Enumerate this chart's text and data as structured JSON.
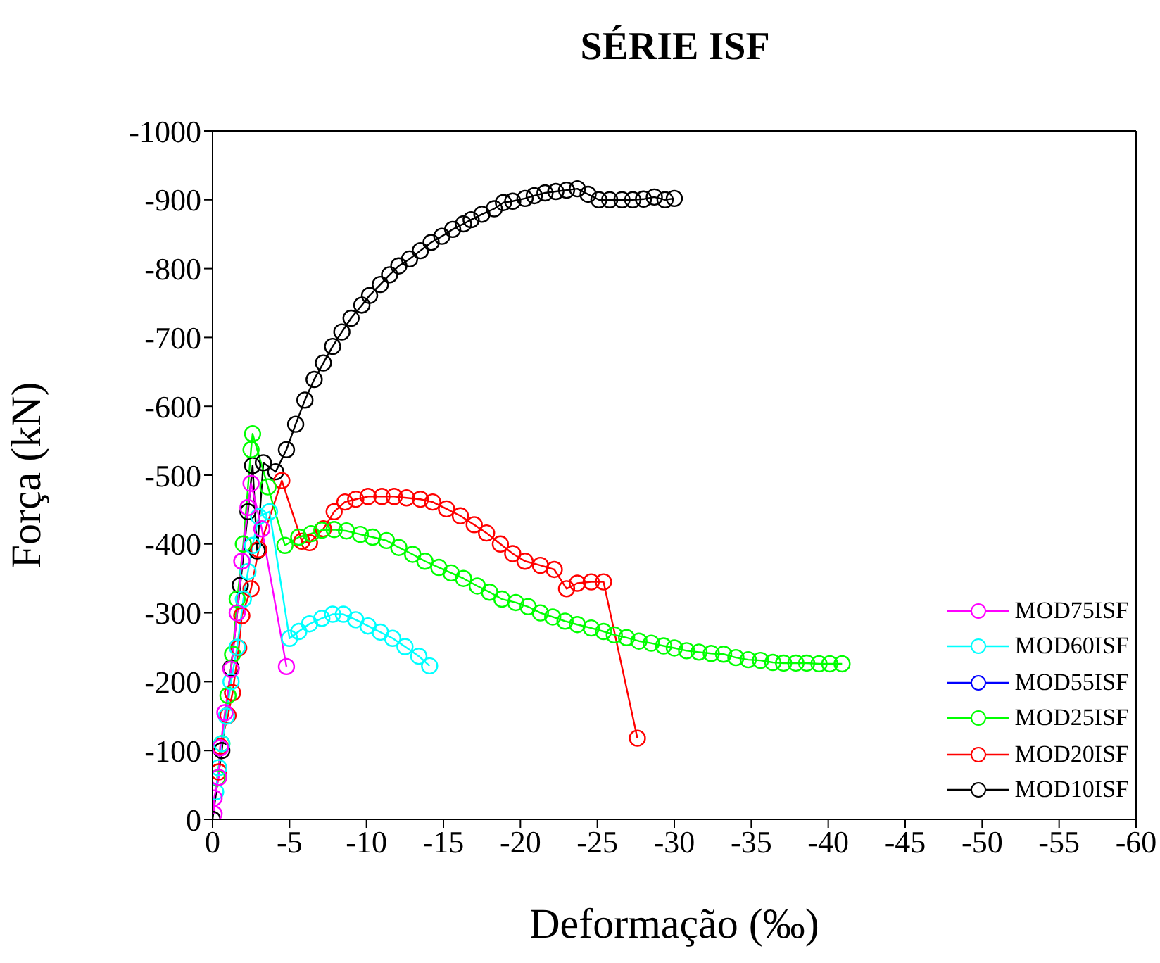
{
  "chart_data": {
    "type": "line",
    "title": "SÉRIE ISF",
    "xlabel": "Deformação (‰)",
    "ylabel": "Força (kN)",
    "xlim": [
      0,
      -60
    ],
    "xticks": [
      0,
      -5,
      -10,
      -15,
      -20,
      -25,
      -30,
      -35,
      -40,
      -45,
      -50,
      -55,
      -60
    ],
    "ylim": [
      0,
      -1000
    ],
    "yticks": [
      0,
      -100,
      -200,
      -300,
      -400,
      -500,
      -600,
      -700,
      -800,
      -900,
      -1000
    ],
    "legend": "bottom right",
    "marker": "circle",
    "line_style": "solid",
    "series": [
      {
        "name": "MOD75ISF",
        "color": "#ff00ff",
        "x": [
          -0.1,
          -0.1,
          -0.4,
          -0.5,
          -0.8,
          -1.2,
          -1.6,
          -1.9,
          -2.3,
          -2.5,
          -3.2,
          -4.8
        ],
        "values": [
          -8,
          -31,
          -61,
          -104,
          -155,
          -218,
          -300,
          -375,
          -453,
          -488,
          -422,
          -222
        ]
      },
      {
        "name": "MOD60ISF",
        "color": "#00ffff",
        "x": [
          -0.2,
          -0.4,
          -0.6,
          -0.9,
          -1.2,
          -1.6,
          -2.0,
          -2.3,
          -2.6,
          -3.0,
          -3.7,
          -5.0,
          -5.6,
          -6.3,
          -7.1,
          -7.8,
          -8.5,
          -9.3,
          -10.1,
          -10.9,
          -11.7,
          -12.5,
          -13.4,
          -14.1
        ],
        "values": [
          -40,
          -75,
          -110,
          -150,
          -200,
          -250,
          -320,
          -360,
          -398,
          -440,
          -447,
          -263,
          -273,
          -284,
          -292,
          -298,
          -298,
          -290,
          -281,
          -272,
          -263,
          -251,
          -237,
          -223
        ]
      },
      {
        "name": "MOD55ISF",
        "color": "#0000ff"
      },
      {
        "name": "MOD25ISF",
        "color": "#00ff00",
        "x": [
          -0.3,
          -0.6,
          -1.0,
          -1.3,
          -1.6,
          -2.0,
          -2.5,
          -2.6,
          -3.6,
          -4.7,
          -5.6,
          -6.4,
          -7.1,
          -7.9,
          -8.7,
          -9.6,
          -10.4,
          -11.3,
          -12.1,
          -13.0,
          -13.8,
          -14.7,
          -15.5,
          -16.3,
          -17.2,
          -18.0,
          -18.8,
          -19.7,
          -20.5,
          -21.3,
          -22.1,
          -22.9,
          -23.7,
          -24.6,
          -25.4,
          -26.1,
          -26.9,
          -27.7,
          -28.5,
          -29.3,
          -30.0,
          -30.8,
          -31.6,
          -32.4,
          -33.2,
          -34.0,
          -34.8,
          -35.6,
          -36.4,
          -37.1,
          -37.9,
          -38.6,
          -39.4,
          -40.1,
          -40.9
        ],
        "values": [
          -60,
          -110,
          -180,
          -240,
          -320,
          -400,
          -537,
          -560,
          -483,
          -398,
          -410,
          -415,
          -420,
          -421,
          -419,
          -414,
          -410,
          -405,
          -395,
          -385,
          -375,
          -366,
          -358,
          -350,
          -339,
          -330,
          -320,
          -315,
          -309,
          -300,
          -294,
          -288,
          -283,
          -278,
          -273,
          -268,
          -264,
          -259,
          -256,
          -252,
          -249,
          -245,
          -243,
          -241,
          -240,
          -235,
          -232,
          -231,
          -228,
          -227,
          -227,
          -227,
          -226,
          -226,
          -226
        ]
      },
      {
        "name": "MOD20ISF",
        "color": "#ff0000",
        "x": [
          -0.4,
          -0.5,
          -1.0,
          -1.3,
          -1.7,
          -1.9,
          -2.5,
          -3.0,
          -4.5,
          -5.8,
          -6.3,
          -7.2,
          -7.9,
          -8.6,
          -9.3,
          -10.1,
          -11.0,
          -11.8,
          -12.6,
          -13.5,
          -14.3,
          -15.2,
          -16.1,
          -17.0,
          -17.8,
          -18.7,
          -19.5,
          -20.3,
          -21.3,
          -22.2,
          -23.0,
          -23.7,
          -24.6,
          -25.4,
          -27.6
        ],
        "values": [
          -69,
          -106,
          -151,
          -184,
          -249,
          -296,
          -335,
          -392,
          -492,
          -404,
          -402,
          -422,
          -447,
          -461,
          -465,
          -469,
          -469,
          -469,
          -467,
          -465,
          -461,
          -451,
          -441,
          -428,
          -416,
          -400,
          -386,
          -375,
          -369,
          -363,
          -335,
          -343,
          -345,
          -345,
          -118
        ]
      },
      {
        "name": "MOD10ISF",
        "color": "#000000",
        "x": [
          0,
          -0.6,
          -1.2,
          -1.8,
          -2.3,
          -2.6,
          -2.9,
          -3.3,
          -4.1,
          -4.8,
          -5.4,
          -6.0,
          -6.6,
          -7.2,
          -7.8,
          -8.4,
          -9.0,
          -9.7,
          -10.2,
          -10.9,
          -11.5,
          -12.1,
          -12.8,
          -13.5,
          -14.2,
          -14.9,
          -15.6,
          -16.3,
          -16.8,
          -17.5,
          -18.3,
          -18.9,
          -19.5,
          -20.3,
          -20.9,
          -21.6,
          -22.3,
          -23.0,
          -23.7,
          -24.4,
          -25.1,
          -25.8,
          -26.6,
          -27.3,
          -28.0,
          -28.7,
          -29.4,
          -30.0
        ],
        "values": [
          0,
          -100,
          -220,
          -340,
          -447,
          -514,
          -390,
          -518,
          -505,
          -537,
          -574,
          -609,
          -639,
          -663,
          -687,
          -708,
          -728,
          -747,
          -761,
          -777,
          -791,
          -804,
          -814,
          -826,
          -838,
          -847,
          -857,
          -865,
          -871,
          -879,
          -887,
          -896,
          -898,
          -902,
          -906,
          -910,
          -912,
          -914,
          -916,
          -908,
          -900,
          -900,
          -900,
          -900,
          -901,
          -904,
          -900,
          -902
        ]
      }
    ]
  }
}
